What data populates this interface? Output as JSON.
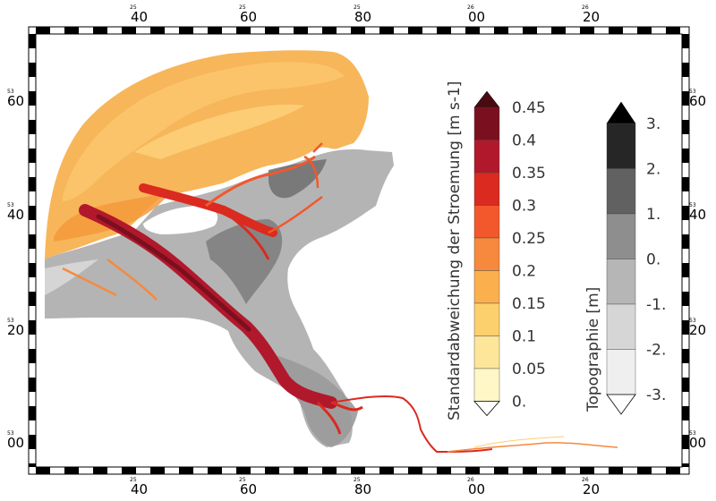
{
  "map": {
    "x_ticks": [
      {
        "small": "25",
        "label": "40"
      },
      {
        "small": "25",
        "label": "60"
      },
      {
        "small": "25",
        "label": "80"
      },
      {
        "small": "26",
        "label": "00"
      },
      {
        "small": "26",
        "label": "20"
      }
    ],
    "y_ticks": [
      {
        "small": "53",
        "label": "60"
      },
      {
        "small": "53",
        "label": "40"
      },
      {
        "small": "53",
        "label": "20"
      },
      {
        "small": "53",
        "label": "00"
      }
    ]
  },
  "current_legend": {
    "title": "Standardabweichung der Stroemung [m s-1]",
    "labels": [
      "0.45",
      "0.4",
      "0.35",
      "0.3",
      "0.25",
      "0.2",
      "0.15",
      "0.1",
      "0.05",
      "0."
    ],
    "colors": [
      "#7a0f1f",
      "#b2182b",
      "#db2a1f",
      "#f2582c",
      "#f6893e",
      "#fbb04d",
      "#fcd06d",
      "#fde59a",
      "#fff7c6"
    ],
    "over_color": "#4a0a10"
  },
  "topo_legend": {
    "title": "Topographie [m]",
    "labels": [
      "3.",
      "2.",
      "1.",
      "0.",
      "-1.",
      "-2.",
      "-3."
    ],
    "colors": [
      "#262626",
      "#616161",
      "#8e8e8e",
      "#b6b6b6",
      "#d6d6d6",
      "#efefef"
    ],
    "over_color": "#000000"
  }
}
